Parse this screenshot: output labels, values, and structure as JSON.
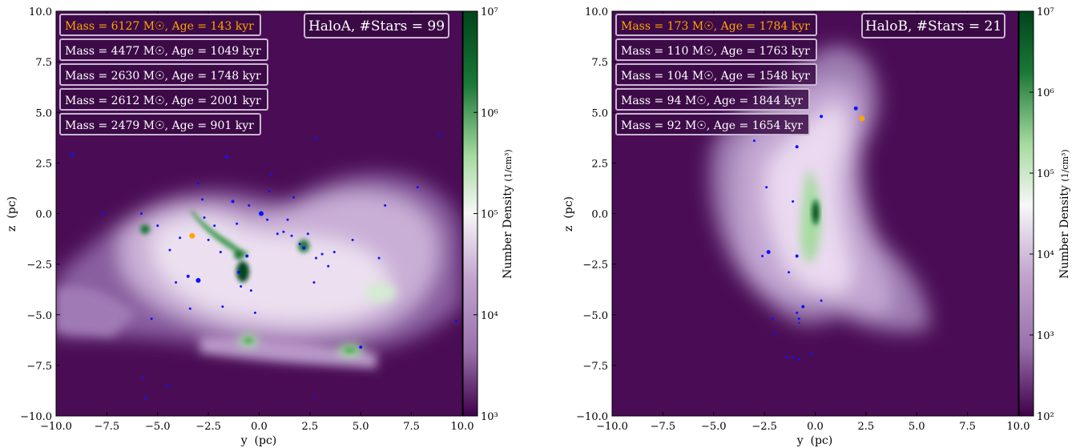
{
  "chart_data": [
    {
      "type": "scatter",
      "title": "HaloA, #Stars = 99",
      "xlabel": "y  (pc)",
      "ylabel": "z  (pc)",
      "xlim": [
        -10,
        10
      ],
      "ylim": [
        -10,
        10
      ],
      "xticks": [
        "−10.0",
        "−7.5",
        "−5.0",
        "−2.5",
        "0.0",
        "2.5",
        "5.0",
        "7.5",
        "10.0"
      ],
      "yticks": [
        "10.0",
        "7.5",
        "5.0",
        "2.5",
        "0.0",
        "−2.5",
        "−5.0",
        "−7.5",
        "−10.0"
      ],
      "colorbar": {
        "label": "Number Density  (1/cm³)",
        "scale": "log",
        "range": [
          1000,
          10000000
        ],
        "ticks": [
          "10⁷",
          "10⁶",
          "10⁵",
          "10⁴",
          "10³"
        ]
      },
      "annotations": [
        {
          "text": "Mass = 6127 M☉, Age = 143 kyr",
          "color": "#ffa500"
        },
        {
          "text": "Mass = 4477 M☉, Age = 1049 kyr",
          "color": "#ffffff"
        },
        {
          "text": "Mass = 2630 M☉, Age = 1748 kyr",
          "color": "#ffffff"
        },
        {
          "text": "Mass = 2612 M☉, Age = 2001 kyr",
          "color": "#ffffff"
        },
        {
          "text": "Mass = 2479 M☉, Age = 901 kyr",
          "color": "#ffffff"
        }
      ],
      "highlight_star": {
        "x": -3.3,
        "y": -1.1
      },
      "stars": [
        {
          "x": -9.2,
          "y": 2.9,
          "r": 2
        },
        {
          "x": -7.7,
          "y": 0.0,
          "r": 1.5
        },
        {
          "x": -5.8,
          "y": 0.0,
          "r": 1.5
        },
        {
          "x": -5.0,
          "y": -0.6,
          "r": 1.5
        },
        {
          "x": -4.4,
          "y": -1.8,
          "r": 1.5
        },
        {
          "x": -4.1,
          "y": -3.4,
          "r": 1.5
        },
        {
          "x": -3.9,
          "y": -1.2,
          "r": 1.5
        },
        {
          "x": -3.5,
          "y": -3.1,
          "r": 2
        },
        {
          "x": -3.0,
          "y": -3.3,
          "r": 3
        },
        {
          "x": -3.0,
          "y": 1.5,
          "r": 1.5
        },
        {
          "x": -2.8,
          "y": 0.7,
          "r": 1.5
        },
        {
          "x": -2.7,
          "y": -0.2,
          "r": 1.5
        },
        {
          "x": -2.5,
          "y": -1.3,
          "r": 1.5
        },
        {
          "x": -2.2,
          "y": -0.6,
          "r": 1.5
        },
        {
          "x": -1.9,
          "y": -1.9,
          "r": 1.5
        },
        {
          "x": -1.8,
          "y": -4.6,
          "r": 1.5
        },
        {
          "x": -1.6,
          "y": 2.8,
          "r": 2
        },
        {
          "x": -1.3,
          "y": 0.6,
          "r": 2
        },
        {
          "x": -1.1,
          "y": -0.5,
          "r": 1.5
        },
        {
          "x": -1.0,
          "y": -2.9,
          "r": 2
        },
        {
          "x": -0.9,
          "y": -3.6,
          "r": 1.5
        },
        {
          "x": -0.6,
          "y": -2.1,
          "r": 2
        },
        {
          "x": -0.5,
          "y": 0.4,
          "r": 1.5
        },
        {
          "x": -0.4,
          "y": -3.8,
          "r": 1.5
        },
        {
          "x": -0.2,
          "y": -4.9,
          "r": 1.5
        },
        {
          "x": 0.1,
          "y": 0.0,
          "r": 3
        },
        {
          "x": 0.4,
          "y": -0.3,
          "r": 1.5
        },
        {
          "x": 0.5,
          "y": 1.1,
          "r": 1.5
        },
        {
          "x": 0.6,
          "y": 1.9,
          "r": 1.5
        },
        {
          "x": 0.9,
          "y": -1.0,
          "r": 1.5
        },
        {
          "x": 1.2,
          "y": -0.9,
          "r": 1.5
        },
        {
          "x": 1.4,
          "y": -0.3,
          "r": 1.5
        },
        {
          "x": 1.6,
          "y": -1.1,
          "r": 1.5
        },
        {
          "x": 1.7,
          "y": 0.8,
          "r": 1.5
        },
        {
          "x": 2.0,
          "y": -1.5,
          "r": 1.5
        },
        {
          "x": 2.2,
          "y": -1.7,
          "r": 2
        },
        {
          "x": 2.4,
          "y": -1.0,
          "r": 1.5
        },
        {
          "x": 2.7,
          "y": -3.4,
          "r": 1.5
        },
        {
          "x": 2.8,
          "y": -2.2,
          "r": 1.5
        },
        {
          "x": 3.1,
          "y": -2.0,
          "r": 1.5
        },
        {
          "x": 3.4,
          "y": -2.6,
          "r": 1.5
        },
        {
          "x": 3.7,
          "y": -1.9,
          "r": 1.5
        },
        {
          "x": 2.7,
          "y": -9.1,
          "r": 1.2
        },
        {
          "x": 2.8,
          "y": 3.7,
          "r": 1.5
        },
        {
          "x": 4.6,
          "y": -1.3,
          "r": 1.5
        },
        {
          "x": 5.0,
          "y": -6.6,
          "r": 2
        },
        {
          "x": 5.9,
          "y": -2.2,
          "r": 1.5
        },
        {
          "x": 6.2,
          "y": 0.4,
          "r": 1.5
        },
        {
          "x": 7.8,
          "y": 1.3,
          "r": 1.5
        },
        {
          "x": 8.9,
          "y": 3.9,
          "r": 1.5
        },
        {
          "x": 9.7,
          "y": -5.3,
          "r": 1.5
        },
        {
          "x": -5.7,
          "y": -8.1,
          "r": 1.5
        },
        {
          "x": -5.6,
          "y": -9.1,
          "r": 1.5
        },
        {
          "x": -4.5,
          "y": -8.5,
          "r": 1.5
        },
        {
          "x": -5.3,
          "y": -5.2,
          "r": 1.5
        },
        {
          "x": -3.4,
          "y": -4.7,
          "r": 1.5
        }
      ]
    },
    {
      "type": "scatter",
      "title": "HaloB, #Stars = 21",
      "xlabel": "y  (pc)",
      "ylabel": "z  (pc)",
      "xlim": [
        -10,
        10
      ],
      "ylim": [
        -10,
        10
      ],
      "xticks": [
        "−10.0",
        "−7.5",
        "−5.0",
        "−2.5",
        "0.0",
        "2.5",
        "5.0",
        "7.5",
        "10.0"
      ],
      "yticks": [
        "10.0",
        "7.5",
        "5.0",
        "2.5",
        "0.0",
        "−2.5",
        "−5.0",
        "−7.5",
        "−10.0"
      ],
      "colorbar": {
        "label": "Number Density  (1/cm³)",
        "scale": "log",
        "range": [
          100,
          10000000
        ],
        "ticks": [
          "10⁷",
          "10⁶",
          "10⁵",
          "10⁴",
          "10³",
          "10²"
        ]
      },
      "annotations": [
        {
          "text": "Mass = 173 M☉, Age = 1784 kyr",
          "color": "#ffa500"
        },
        {
          "text": "Mass = 110 M☉, Age = 1763 kyr",
          "color": "#ffffff"
        },
        {
          "text": "Mass = 104 M☉, Age = 1548 kyr",
          "color": "#ffffff"
        },
        {
          "text": "Mass = 94 M☉, Age = 1844 kyr",
          "color": "#ffffff"
        },
        {
          "text": "Mass = 92 M☉, Age = 1654 kyr",
          "color": "#ffffff"
        }
      ],
      "highlight_star": {
        "x": 2.3,
        "y": 4.7
      },
      "stars": [
        {
          "x": 2.0,
          "y": 5.2,
          "r": 2.5
        },
        {
          "x": 0.3,
          "y": 4.8,
          "r": 2
        },
        {
          "x": -0.9,
          "y": 3.3,
          "r": 2
        },
        {
          "x": -3.0,
          "y": 3.6,
          "r": 1.5
        },
        {
          "x": -2.4,
          "y": 1.3,
          "r": 1.5
        },
        {
          "x": -1.1,
          "y": 0.6,
          "r": 1.5
        },
        {
          "x": -2.3,
          "y": -1.9,
          "r": 2.5
        },
        {
          "x": -2.6,
          "y": -2.1,
          "r": 1.5
        },
        {
          "x": -0.9,
          "y": -2.1,
          "r": 2
        },
        {
          "x": -1.3,
          "y": -2.9,
          "r": 1.5
        },
        {
          "x": -0.6,
          "y": -4.6,
          "r": 2
        },
        {
          "x": 0.3,
          "y": -4.3,
          "r": 1.5
        },
        {
          "x": -2.1,
          "y": -5.2,
          "r": 1.5
        },
        {
          "x": -0.8,
          "y": -5.2,
          "r": 1.5
        },
        {
          "x": -2.0,
          "y": -5.9,
          "r": 1.5
        },
        {
          "x": -1.4,
          "y": -7.1,
          "r": 1.5
        },
        {
          "x": -1.1,
          "y": -7.1,
          "r": 1.5
        },
        {
          "x": -0.8,
          "y": -7.2,
          "r": 1.5
        },
        {
          "x": -0.2,
          "y": -6.9,
          "r": 1.5
        },
        {
          "x": -0.9,
          "y": -4.9,
          "r": 1.5
        },
        {
          "x": -0.8,
          "y": -5.4,
          "r": 1.2
        }
      ]
    }
  ]
}
